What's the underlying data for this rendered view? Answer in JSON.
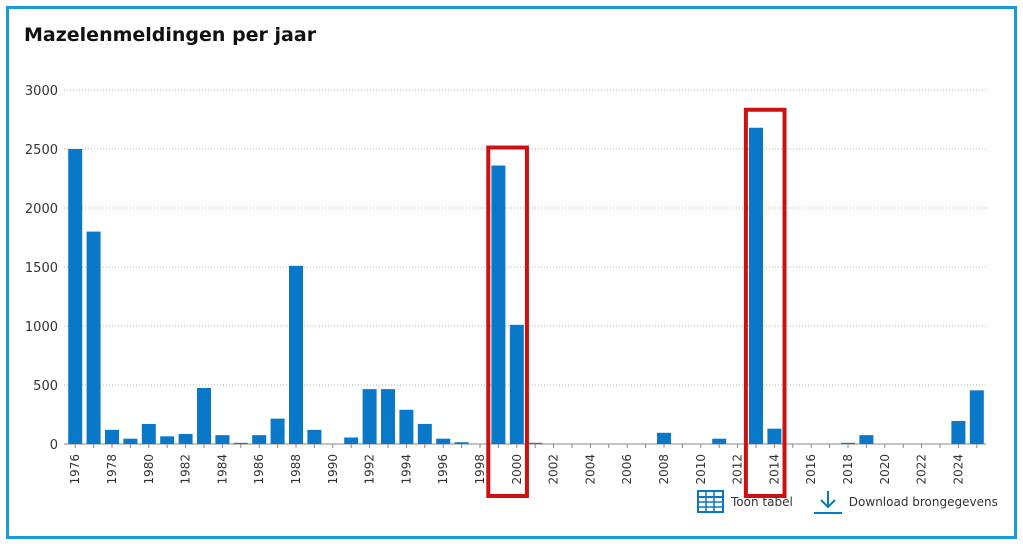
{
  "title": "Mazelenmeldingen per jaar",
  "actions": {
    "table_label": "Toon tabel",
    "download_label": "Download brongegevens"
  },
  "colors": {
    "bar": "#0a78c8",
    "highlight": "#cc1111",
    "border": "#1a9ad6",
    "grid": "#b5b5b5"
  },
  "chart_data": {
    "type": "bar",
    "title": "Mazelenmeldingen per jaar",
    "xlabel": "",
    "ylabel": "",
    "ylim": [
      0,
      3000
    ],
    "yticks": [
      0,
      500,
      1000,
      1500,
      2000,
      2500,
      3000
    ],
    "grid": true,
    "x_tick_labels": [
      "1976",
      "1978",
      "1980",
      "1982",
      "1984",
      "1986",
      "1988",
      "1990",
      "1992",
      "1994",
      "1996",
      "1998",
      "2000",
      "2002",
      "2004",
      "2006",
      "2008",
      "2010",
      "2012",
      "2014",
      "2016",
      "2018",
      "2020",
      "2022",
      "2024"
    ],
    "categories": [
      1976,
      1977,
      1978,
      1979,
      1980,
      1981,
      1982,
      1983,
      1984,
      1985,
      1986,
      1987,
      1988,
      1989,
      1990,
      1991,
      1992,
      1993,
      1994,
      1995,
      1996,
      1997,
      1998,
      1999,
      2000,
      2001,
      2002,
      2003,
      2004,
      2005,
      2006,
      2007,
      2008,
      2009,
      2010,
      2011,
      2012,
      2013,
      2014,
      2015,
      2016,
      2017,
      2018,
      2019,
      2020,
      2021,
      2022,
      2023,
      2024,
      2025
    ],
    "values": [
      2500,
      1800,
      120,
      45,
      170,
      65,
      85,
      475,
      75,
      10,
      75,
      215,
      1510,
      120,
      0,
      55,
      465,
      465,
      290,
      170,
      45,
      15,
      0,
      2360,
      1010,
      10,
      0,
      0,
      0,
      0,
      0,
      0,
      95,
      0,
      0,
      45,
      0,
      2680,
      130,
      0,
      0,
      0,
      10,
      75,
      0,
      0,
      0,
      0,
      195,
      455
    ],
    "highlighted_ranges": [
      [
        1999,
        2000
      ],
      [
        2013,
        2014
      ]
    ]
  }
}
